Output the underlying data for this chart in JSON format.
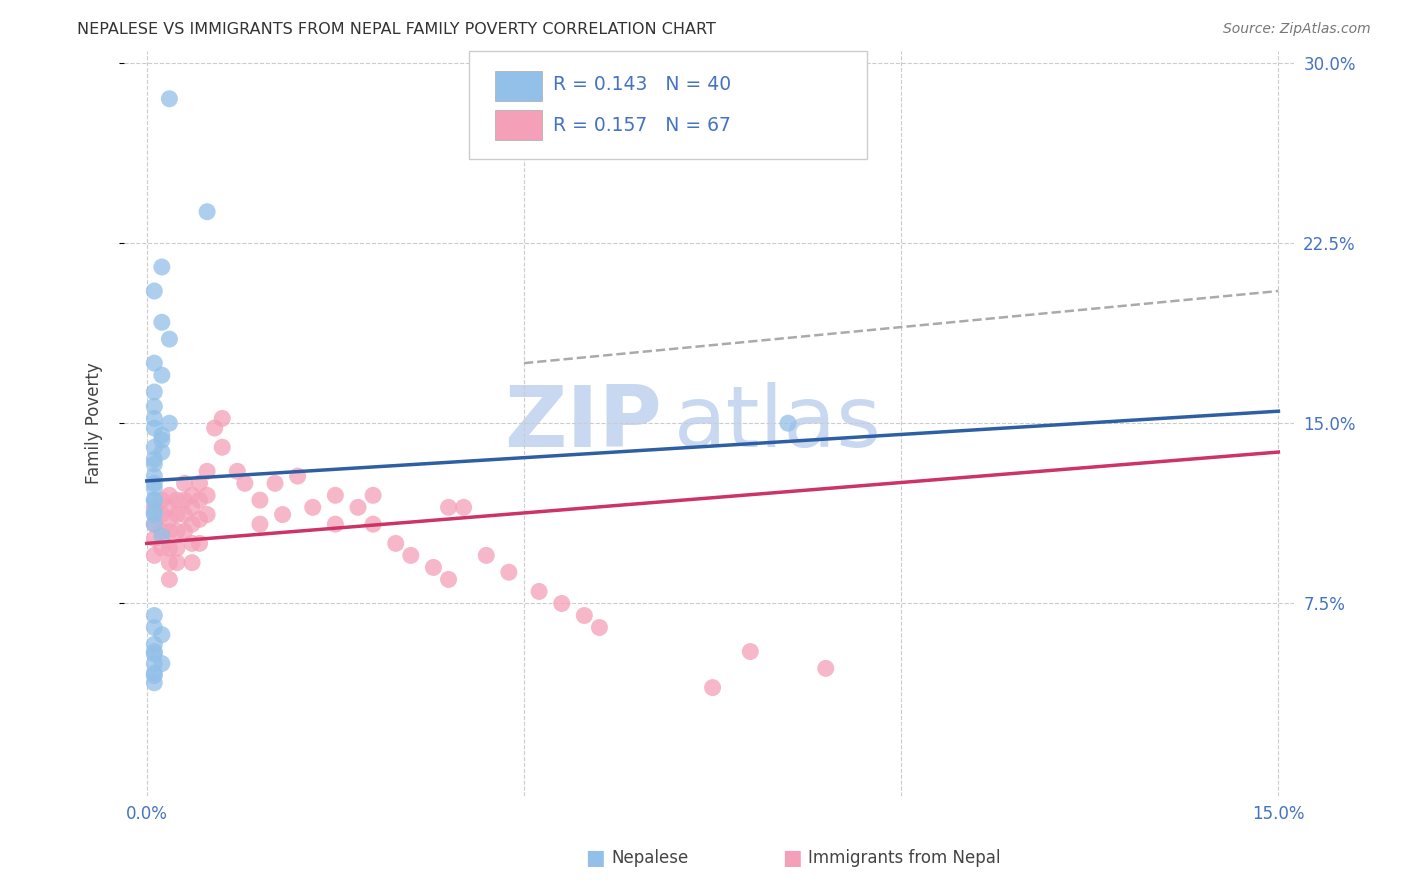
{
  "title": "NEPALESE VS IMMIGRANTS FROM NEPAL FAMILY POVERTY CORRELATION CHART",
  "source": "Source: ZipAtlas.com",
  "ylabel": "Family Poverty",
  "xlim": [
    0.0,
    0.15
  ],
  "ylim": [
    0.0,
    0.3
  ],
  "blue_R": "0.143",
  "blue_N": "40",
  "pink_R": "0.157",
  "pink_N": "67",
  "blue_color": "#92C0E8",
  "pink_color": "#F4A0B8",
  "blue_line_color": "#2E5FA3",
  "pink_line_color": "#CC3366",
  "dashed_line_color": "#AAAAAA",
  "legend_text_color": "#4472C4",
  "watermark_color": "#C8D8F0",
  "xtick_color": "#4472C4",
  "ytick_color": "#4472C4",
  "blue_x": [
    0.003,
    0.008,
    0.002,
    0.001,
    0.002,
    0.003,
    0.001,
    0.002,
    0.001,
    0.001,
    0.001,
    0.001,
    0.002,
    0.002,
    0.001,
    0.001,
    0.001,
    0.001,
    0.001,
    0.001,
    0.002,
    0.003,
    0.002,
    0.001,
    0.001,
    0.001,
    0.001,
    0.001,
    0.001,
    0.001,
    0.002,
    0.001,
    0.001,
    0.002,
    0.001,
    0.001,
    0.001,
    0.001,
    0.001,
    0.085
  ],
  "blue_y": [
    0.285,
    0.238,
    0.215,
    0.205,
    0.192,
    0.185,
    0.175,
    0.17,
    0.163,
    0.157,
    0.152,
    0.148,
    0.143,
    0.138,
    0.133,
    0.128,
    0.123,
    0.118,
    0.113,
    0.108,
    0.103,
    0.15,
    0.145,
    0.14,
    0.135,
    0.125,
    0.118,
    0.112,
    0.065,
    0.07,
    0.062,
    0.058,
    0.054,
    0.05,
    0.046,
    0.042,
    0.055,
    0.05,
    0.045,
    0.15
  ],
  "pink_x": [
    0.001,
    0.001,
    0.001,
    0.001,
    0.002,
    0.002,
    0.002,
    0.002,
    0.003,
    0.003,
    0.003,
    0.003,
    0.003,
    0.003,
    0.003,
    0.004,
    0.004,
    0.004,
    0.004,
    0.004,
    0.005,
    0.005,
    0.005,
    0.005,
    0.006,
    0.006,
    0.006,
    0.006,
    0.006,
    0.007,
    0.007,
    0.007,
    0.007,
    0.008,
    0.008,
    0.008,
    0.009,
    0.01,
    0.01,
    0.012,
    0.013,
    0.015,
    0.015,
    0.017,
    0.018,
    0.02,
    0.022,
    0.025,
    0.025,
    0.028,
    0.03,
    0.03,
    0.033,
    0.035,
    0.038,
    0.04,
    0.042,
    0.045,
    0.048,
    0.052,
    0.055,
    0.058,
    0.06,
    0.075,
    0.08,
    0.09,
    0.04
  ],
  "pink_y": [
    0.115,
    0.108,
    0.102,
    0.095,
    0.118,
    0.112,
    0.105,
    0.098,
    0.12,
    0.115,
    0.11,
    0.105,
    0.098,
    0.092,
    0.085,
    0.118,
    0.112,
    0.105,
    0.098,
    0.092,
    0.125,
    0.118,
    0.112,
    0.105,
    0.12,
    0.115,
    0.108,
    0.1,
    0.092,
    0.125,
    0.118,
    0.11,
    0.1,
    0.13,
    0.12,
    0.112,
    0.148,
    0.152,
    0.14,
    0.13,
    0.125,
    0.118,
    0.108,
    0.125,
    0.112,
    0.128,
    0.115,
    0.12,
    0.108,
    0.115,
    0.12,
    0.108,
    0.1,
    0.095,
    0.09,
    0.085,
    0.115,
    0.095,
    0.088,
    0.08,
    0.075,
    0.07,
    0.065,
    0.04,
    0.055,
    0.048,
    0.115
  ]
}
